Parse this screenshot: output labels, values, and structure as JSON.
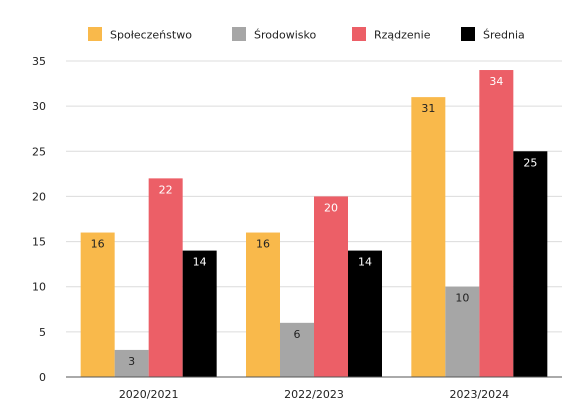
{
  "chart_data": {
    "type": "bar",
    "categories": [
      "2020/2021",
      "2022/2023",
      "2023/2024"
    ],
    "series": [
      {
        "name": "Społeczeństwo",
        "color": "#F9B94B",
        "label_color": "#222222",
        "values": [
          16,
          16,
          31
        ]
      },
      {
        "name": "Środowisko",
        "color": "#A6A6A6",
        "label_color": "#222222",
        "values": [
          3,
          6,
          10
        ]
      },
      {
        "name": "Rządzenie",
        "color": "#EC5F67",
        "label_color": "#ffffff",
        "values": [
          22,
          20,
          34
        ]
      },
      {
        "name": "Średnia",
        "color": "#000000",
        "label_color": "#ffffff",
        "values": [
          14,
          14,
          25
        ]
      }
    ],
    "ylim": [
      0,
      35
    ],
    "yticks": [
      0,
      5,
      10,
      15,
      20,
      25,
      30,
      35
    ],
    "grid": true,
    "legend": "top"
  }
}
